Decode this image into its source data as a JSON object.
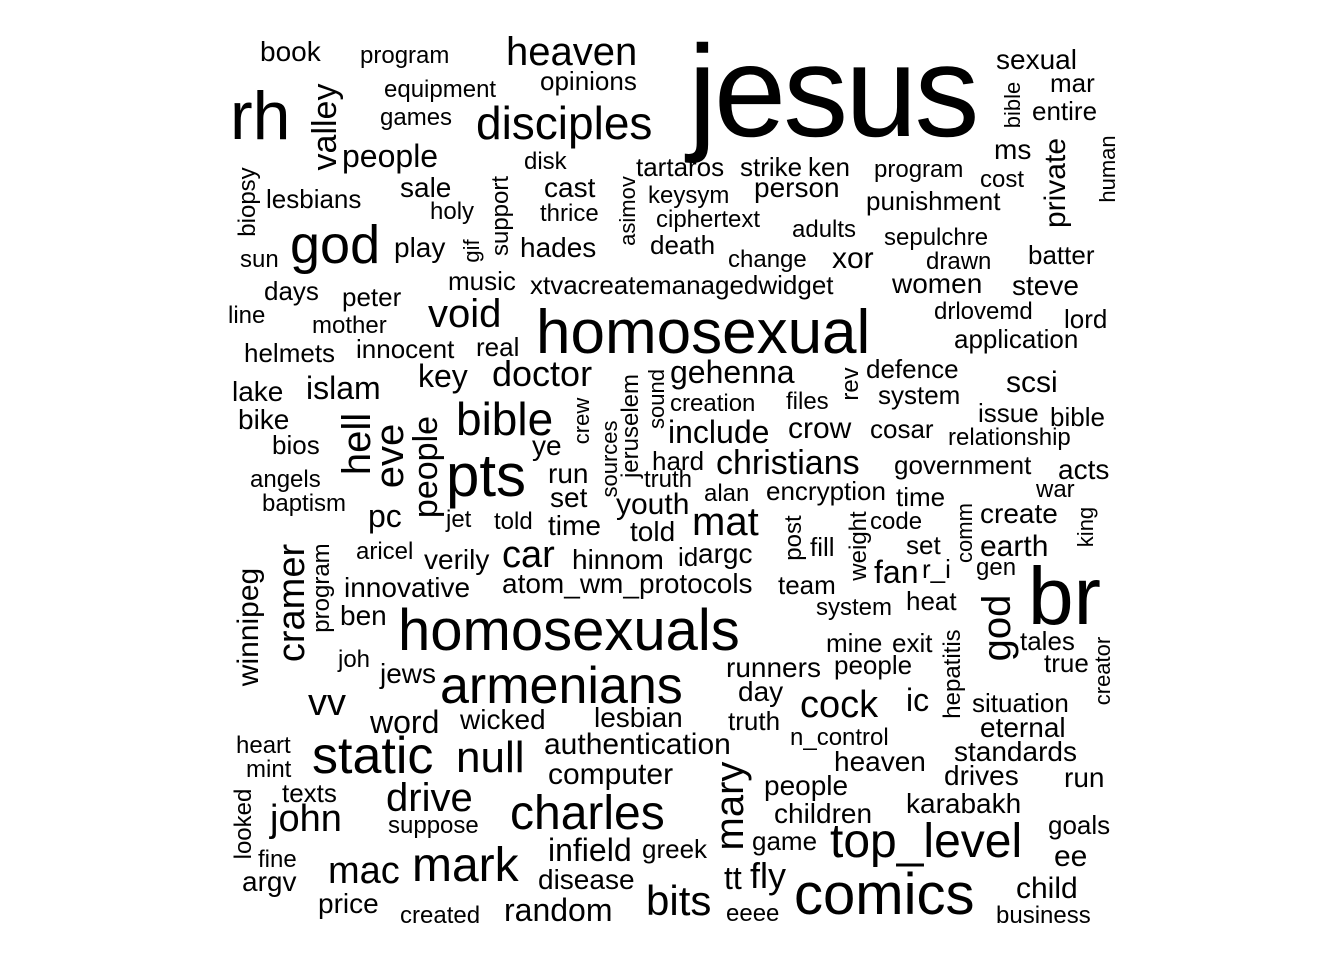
{
  "text_color": "#000000",
  "background": "#ffffff",
  "words": [
    {
      "text": "jesus",
      "weight": 130
    },
    {
      "text": "br",
      "weight": 80
    },
    {
      "text": "homosexual",
      "weight": 66
    },
    {
      "text": "homosexuals",
      "weight": 62
    },
    {
      "text": "rh",
      "weight": 68
    },
    {
      "text": "pts",
      "weight": 60
    },
    {
      "text": "comics",
      "weight": 60
    },
    {
      "text": "armenians",
      "weight": 54
    },
    {
      "text": "god",
      "weight": 52
    },
    {
      "text": "static",
      "weight": 52
    },
    {
      "text": "top_level",
      "weight": 50
    },
    {
      "text": "charles",
      "weight": 48
    },
    {
      "text": "mark",
      "weight": 48
    },
    {
      "text": "heaven",
      "weight": 40
    },
    {
      "text": "disciples",
      "weight": 46
    },
    {
      "text": "bible",
      "weight": 46
    },
    {
      "text": "null",
      "weight": 44
    },
    {
      "text": "drive",
      "weight": 40
    },
    {
      "text": "void",
      "weight": 40
    },
    {
      "text": "mat",
      "weight": 40
    },
    {
      "text": "bits",
      "weight": 42
    },
    {
      "text": "mac",
      "weight": 38
    },
    {
      "text": "john",
      "weight": 38
    },
    {
      "text": "vv",
      "weight": 38
    },
    {
      "text": "car",
      "weight": 38
    },
    {
      "text": "cock",
      "weight": 38
    },
    {
      "text": "doctor",
      "weight": 34
    },
    {
      "text": "christians",
      "weight": 34
    },
    {
      "text": "key",
      "weight": 32
    },
    {
      "text": "people",
      "weight": 32
    },
    {
      "text": "islam",
      "weight": 32
    },
    {
      "text": "random",
      "weight": 32
    },
    {
      "text": "gehenna",
      "weight": 32
    },
    {
      "text": "pc",
      "weight": 32
    },
    {
      "text": "word",
      "weight": 32
    },
    {
      "text": "ic",
      "weight": 32
    },
    {
      "text": "infield",
      "weight": 30
    },
    {
      "text": "authentication",
      "weight": 30
    },
    {
      "text": "computer",
      "weight": 30
    },
    {
      "text": "scsi",
      "weight": 30
    },
    {
      "text": "child",
      "weight": 30
    },
    {
      "text": "ee",
      "weight": 30
    },
    {
      "text": "fan",
      "weight": 30
    },
    {
      "text": "fly",
      "weight": 30
    },
    {
      "text": "sexual",
      "weight": 28
    },
    {
      "text": "book",
      "weight": 28
    },
    {
      "text": "sale",
      "weight": 28
    },
    {
      "text": "cast",
      "weight": 28
    },
    {
      "text": "hades",
      "weight": 28
    },
    {
      "text": "play",
      "weight": 28
    },
    {
      "text": "xor",
      "weight": 28
    },
    {
      "text": "person",
      "weight": 26
    },
    {
      "text": "women",
      "weight": 28
    },
    {
      "text": "steve",
      "weight": 28
    },
    {
      "text": "peter",
      "weight": 26
    },
    {
      "text": "bike",
      "weight": 28
    },
    {
      "text": "lake",
      "weight": 26
    },
    {
      "text": "tt",
      "weight": 30
    },
    {
      "text": "run",
      "weight": 28
    },
    {
      "text": "people",
      "weight": 26
    },
    {
      "text": "day",
      "weight": 26
    },
    {
      "text": "lesbians",
      "weight": 26
    },
    {
      "text": "opinions",
      "weight": 26
    },
    {
      "text": "program",
      "weight": 24
    },
    {
      "text": "equipment",
      "weight": 24
    },
    {
      "text": "games",
      "weight": 24
    },
    {
      "text": "tartaros",
      "weight": 24
    },
    {
      "text": "strike",
      "weight": 24
    },
    {
      "text": "ken",
      "weight": 24
    },
    {
      "text": "program",
      "weight": 24
    },
    {
      "text": "punishment",
      "weight": 26
    },
    {
      "text": "keysym",
      "weight": 24
    },
    {
      "text": "thrice",
      "weight": 24
    },
    {
      "text": "holy",
      "weight": 24
    },
    {
      "text": "disk",
      "weight": 24
    },
    {
      "text": "ciphertext",
      "weight": 24
    },
    {
      "text": "death",
      "weight": 26
    },
    {
      "text": "change",
      "weight": 24
    },
    {
      "text": "adults",
      "weight": 24
    },
    {
      "text": "sepulchre",
      "weight": 24
    },
    {
      "text": "drawn",
      "weight": 24
    },
    {
      "text": "batter",
      "weight": 26
    },
    {
      "text": "music",
      "weight": 26
    },
    {
      "text": "xtvacreatemanagedwidget",
      "weight": 26
    },
    {
      "text": "days",
      "weight": 24
    },
    {
      "text": "sun",
      "weight": 24
    },
    {
      "text": "line",
      "weight": 24
    },
    {
      "text": "mother",
      "weight": 24
    },
    {
      "text": "innocent",
      "weight": 24
    },
    {
      "text": "real",
      "weight": 24
    },
    {
      "text": "helmets",
      "weight": 24
    },
    {
      "text": "drlovemd",
      "weight": 24
    },
    {
      "text": "lord",
      "weight": 24
    },
    {
      "text": "application",
      "weight": 26
    },
    {
      "text": "defence",
      "weight": 24
    },
    {
      "text": "creation",
      "weight": 24
    },
    {
      "text": "files",
      "weight": 24
    },
    {
      "text": "system",
      "weight": 24
    },
    {
      "text": "issue",
      "weight": 24
    },
    {
      "text": "bible",
      "weight": 24
    },
    {
      "text": "relationship",
      "weight": 22
    },
    {
      "text": "bios",
      "weight": 24
    },
    {
      "text": "include",
      "weight": 30
    },
    {
      "text": "crow",
      "weight": 28
    },
    {
      "text": "cosar",
      "weight": 24
    },
    {
      "text": "ye",
      "weight": 26
    },
    {
      "text": "hard",
      "weight": 24
    },
    {
      "text": "government",
      "weight": 24
    },
    {
      "text": "acts",
      "weight": 24
    },
    {
      "text": "angels",
      "weight": 22
    },
    {
      "text": "run",
      "weight": 24
    },
    {
      "text": "truth",
      "weight": 22
    },
    {
      "text": "encryption",
      "weight": 24
    },
    {
      "text": "war",
      "weight": 22
    },
    {
      "text": "baptism",
      "weight": 24
    },
    {
      "text": "set",
      "weight": 26
    },
    {
      "text": "alan",
      "weight": 24
    },
    {
      "text": "time",
      "weight": 24
    },
    {
      "text": "youth",
      "weight": 26
    },
    {
      "text": "jet",
      "weight": 22
    },
    {
      "text": "told",
      "weight": 24
    },
    {
      "text": "time",
      "weight": 26
    },
    {
      "text": "told",
      "weight": 24
    },
    {
      "text": "code",
      "weight": 24
    },
    {
      "text": "create",
      "weight": 26
    },
    {
      "text": "aricel",
      "weight": 22
    },
    {
      "text": "verily",
      "weight": 26
    },
    {
      "text": "hinnom",
      "weight": 26
    },
    {
      "text": "id",
      "weight": 24
    },
    {
      "text": "argc",
      "weight": 26
    },
    {
      "text": "fill",
      "weight": 24
    },
    {
      "text": "set",
      "weight": 24
    },
    {
      "text": "earth",
      "weight": 28
    },
    {
      "text": "r_i",
      "weight": 24
    },
    {
      "text": "gen",
      "weight": 22
    },
    {
      "text": "innovative",
      "weight": 26
    },
    {
      "text": "atom_wm_protocols",
      "weight": 26
    },
    {
      "text": "team",
      "weight": 24
    },
    {
      "text": "system",
      "weight": 24
    },
    {
      "text": "heat",
      "weight": 24
    },
    {
      "text": "ben",
      "weight": 26
    },
    {
      "text": "mine",
      "weight": 24
    },
    {
      "text": "exit",
      "weight": 24
    },
    {
      "text": "tales",
      "weight": 24
    },
    {
      "text": "joh",
      "weight": 22
    },
    {
      "text": "jews",
      "weight": 24
    },
    {
      "text": "runners",
      "weight": 26
    },
    {
      "text": "people",
      "weight": 24
    },
    {
      "text": "true",
      "weight": 24
    },
    {
      "text": "situation",
      "weight": 24
    },
    {
      "text": "wicked",
      "weight": 26
    },
    {
      "text": "lesbian",
      "weight": 26
    },
    {
      "text": "truth",
      "weight": 24
    },
    {
      "text": "eternal",
      "weight": 26
    },
    {
      "text": "heart",
      "weight": 22
    },
    {
      "text": "n_control",
      "weight": 22
    },
    {
      "text": "standards",
      "weight": 26
    },
    {
      "text": "mint",
      "weight": 22
    },
    {
      "text": "heaven",
      "weight": 26
    },
    {
      "text": "drives",
      "weight": 26
    },
    {
      "text": "texts",
      "weight": 24
    },
    {
      "text": "people",
      "weight": 26
    },
    {
      "text": "karabakh",
      "weight": 26
    },
    {
      "text": "suppose",
      "weight": 22
    },
    {
      "text": "children",
      "weight": 26
    },
    {
      "text": "goals",
      "weight": 24
    },
    {
      "text": "game",
      "weight": 24
    },
    {
      "text": "greek",
      "weight": 24
    },
    {
      "text": "fine",
      "weight": 22
    },
    {
      "text": "argv",
      "weight": 26
    },
    {
      "text": "disease",
      "weight": 26
    },
    {
      "text": "price",
      "weight": 26
    },
    {
      "text": "created",
      "weight": 22
    },
    {
      "text": "eeee",
      "weight": 22
    },
    {
      "text": "business",
      "weight": 22
    },
    {
      "text": "mar",
      "weight": 24
    },
    {
      "text": "entire",
      "weight": 24
    },
    {
      "text": "ms",
      "weight": 24
    },
    {
      "text": "cost",
      "weight": 22
    },
    {
      "text": "program",
      "weight": 24
    },
    {
      "text": "valley",
      "weight": 34
    },
    {
      "text": "biopsy",
      "weight": 24
    },
    {
      "text": "gif",
      "weight": 22
    },
    {
      "text": "support",
      "weight": 24
    },
    {
      "text": "asimov",
      "weight": 22
    },
    {
      "text": "bible",
      "weight": 22
    },
    {
      "text": "private",
      "weight": 30
    },
    {
      "text": "human",
      "weight": 22
    },
    {
      "text": "hell",
      "weight": 40
    },
    {
      "text": "eve",
      "weight": 40
    },
    {
      "text": "people",
      "weight": 34
    },
    {
      "text": "crew",
      "weight": 22
    },
    {
      "text": "sources",
      "weight": 22
    },
    {
      "text": "jeruselem",
      "weight": 24
    },
    {
      "text": "jeruselem",
      "weight": 24
    },
    {
      "text": "sound",
      "weight": 22
    },
    {
      "text": "rev",
      "weight": 24
    },
    {
      "text": "king",
      "weight": 22
    },
    {
      "text": "comm",
      "weight": 22
    },
    {
      "text": "weight",
      "weight": 24
    },
    {
      "text": "post",
      "weight": 24
    },
    {
      "text": "cramer",
      "weight": 38
    },
    {
      "text": "program",
      "weight": 24
    },
    {
      "text": "winnipeg",
      "weight": 30
    },
    {
      "text": "god",
      "weight": 40
    },
    {
      "text": "hepatitis",
      "weight": 24
    },
    {
      "text": "creator",
      "weight": 22
    },
    {
      "text": "mary",
      "weight": 40
    },
    {
      "text": "looked",
      "weight": 24
    }
  ]
}
